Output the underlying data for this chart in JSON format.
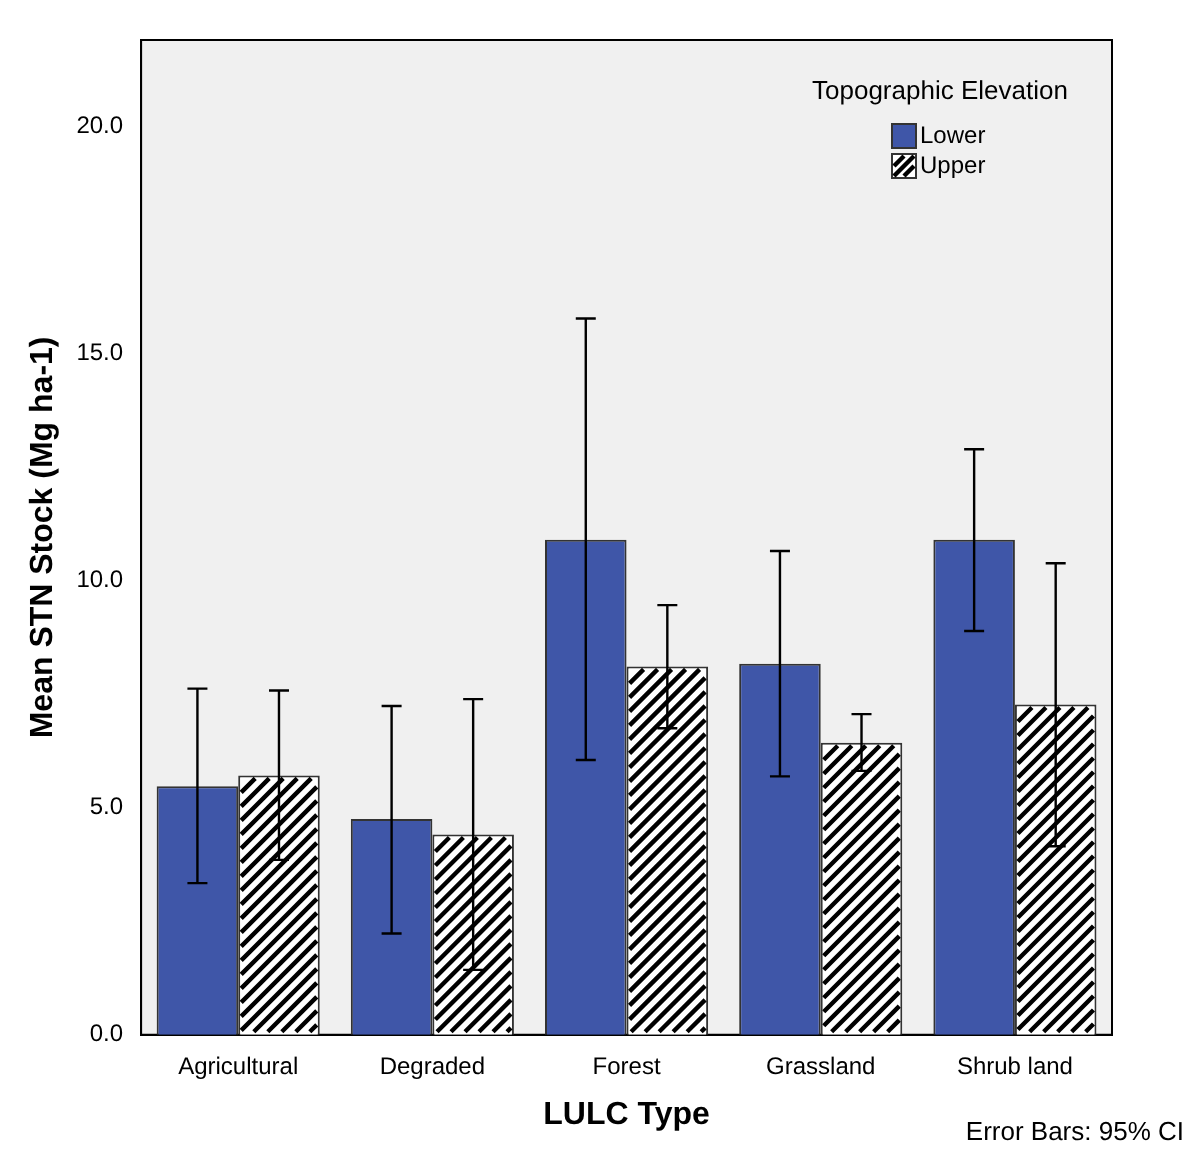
{
  "chart_data": {
    "type": "bar",
    "xlabel": "LULC Type",
    "ylabel": "Mean STN Stock (Mg ha-1)",
    "legend_title": "Topographic Elevation",
    "legend": "top right",
    "grid": false,
    "categories": [
      "Agricultural",
      "Degraded",
      "Forest",
      "Grassland",
      "Shrub land"
    ],
    "series": [
      {
        "name": "Lower",
        "color": "#3f56a8",
        "values": [
          5.47,
          4.75,
          10.9,
          8.17,
          10.9
        ],
        "errors": [
          [
            3.34,
            7.62
          ],
          [
            2.23,
            7.24
          ],
          [
            6.05,
            15.77
          ],
          [
            5.69,
            10.65
          ],
          [
            8.89,
            12.89
          ]
        ]
      },
      {
        "name": "Upper",
        "color": "#ffffff",
        "values": [
          5.71,
          4.41,
          8.11,
          6.43,
          7.27
        ],
        "errors": [
          [
            3.85,
            7.58
          ],
          [
            1.43,
            7.39
          ],
          [
            6.75,
            9.46
          ],
          [
            5.81,
            7.06
          ],
          [
            4.15,
            10.38
          ]
        ]
      }
    ],
    "ylim": [
      0,
      21.9
    ],
    "yticks": [
      {
        "value": 0,
        "label": "0.0"
      },
      {
        "value": 5,
        "label": "5.0"
      },
      {
        "value": 10,
        "label": "10.0"
      },
      {
        "value": 15,
        "label": "15.0"
      },
      {
        "value": 20,
        "label": "20.0"
      }
    ],
    "annotations": [
      "Error Bars: 95% CI"
    ]
  }
}
